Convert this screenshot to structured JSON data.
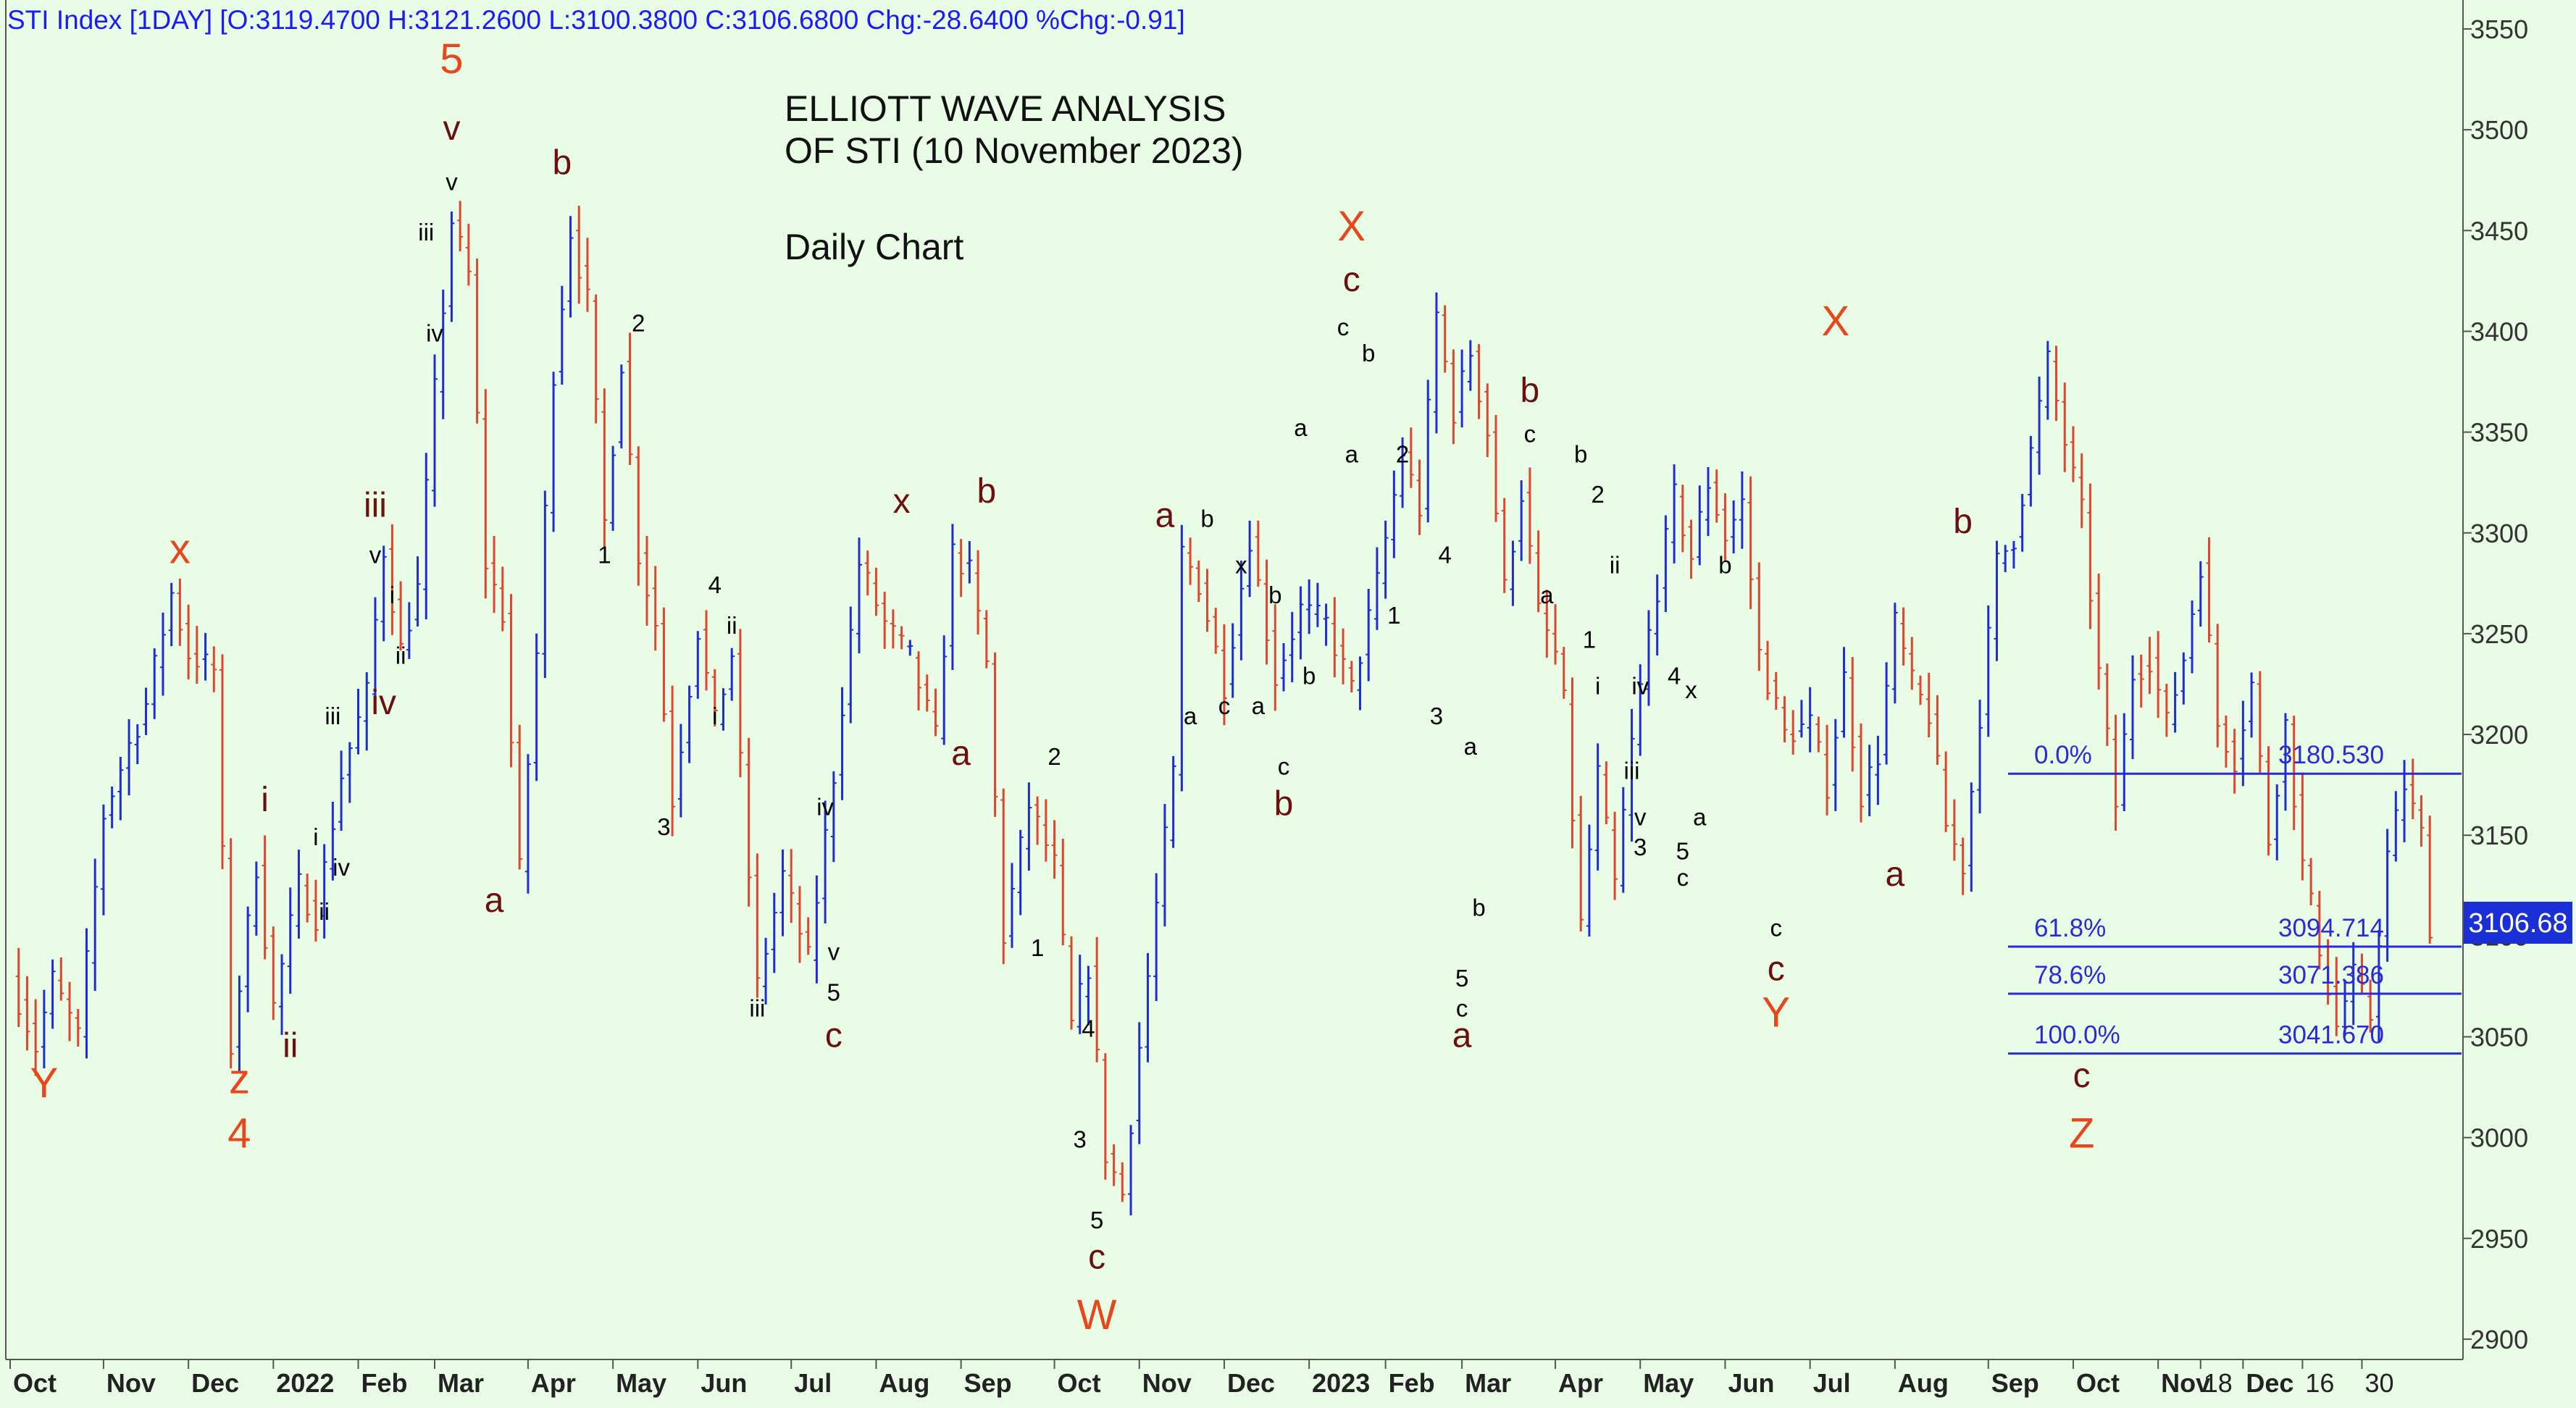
{
  "header": {
    "text": "STI Index [1DAY] [O:3119.4700 H:3121.2600 L:3100.3800 C:3106.6800 Chg:-28.6400 %Chg:-0.91]"
  },
  "title": {
    "line1": "ELLIOTT WAVE ANALYSIS",
    "line2": "OF STI (10 November 2023)",
    "subtitle": "Daily Chart"
  },
  "colors": {
    "background": "#e9fce6",
    "up_bar": "#1f2bd6",
    "down_bar": "#e0452e",
    "header_text": "#1a1aff",
    "primary_label": "#e8471e",
    "intermediate_label": "#6b0f0f",
    "minor_label": "#000000",
    "fib_line": "#2a2ad8"
  },
  "chart_data": {
    "type": "ohlc",
    "title": "ELLIOTT WAVE ANALYSIS OF STI (10 November 2023)",
    "subtitle": "Daily Chart",
    "ylim": [
      2880,
      3565
    ],
    "y_ticks": [
      2900,
      2950,
      3000,
      3050,
      3100,
      3150,
      3200,
      3250,
      3300,
      3350,
      3400,
      3450,
      3500,
      3550
    ],
    "x_ticks": [
      "Oct",
      "Nov",
      "Dec",
      "2022",
      "Feb",
      "Mar",
      "Apr",
      "May",
      "Jun",
      "Jul",
      "Aug",
      "Sep",
      "Oct",
      "Nov",
      "Dec",
      "2023",
      "Feb",
      "Mar",
      "Apr",
      "May",
      "Jun",
      "Jul",
      "Aug",
      "Sep",
      "Oct",
      "Nov",
      "18",
      "Dec",
      "16",
      "30"
    ],
    "x_tick_index": [
      0,
      11,
      21,
      31,
      41,
      50,
      61,
      71,
      81,
      92,
      102,
      112,
      123,
      133,
      143,
      153,
      162,
      171,
      182,
      192,
      202,
      212,
      222,
      233,
      243,
      253,
      258,
      263,
      270,
      277
    ],
    "last_price": "3106.68",
    "price_path": [
      [
        0,
        3080
      ],
      [
        3,
        3045
      ],
      [
        5,
        3078
      ],
      [
        8,
        3050
      ],
      [
        11,
        3160
      ],
      [
        14,
        3195
      ],
      [
        16,
        3215
      ],
      [
        19,
        3270
      ],
      [
        21,
        3240
      ],
      [
        24,
        3232
      ],
      [
        26,
        3045
      ],
      [
        29,
        3135
      ],
      [
        31,
        3065
      ],
      [
        34,
        3125
      ],
      [
        36,
        3110
      ],
      [
        39,
        3180
      ],
      [
        42,
        3220
      ],
      [
        44,
        3292
      ],
      [
        46,
        3242
      ],
      [
        48,
        3272
      ],
      [
        50,
        3370
      ],
      [
        52,
        3455
      ],
      [
        54,
        3428
      ],
      [
        56,
        3285
      ],
      [
        58,
        3260
      ],
      [
        60,
        3132
      ],
      [
        62,
        3240
      ],
      [
        64,
        3380
      ],
      [
        66,
        3450
      ],
      [
        68,
        3415
      ],
      [
        70,
        3305
      ],
      [
        72,
        3385
      ],
      [
        74,
        3290
      ],
      [
        76,
        3255
      ],
      [
        78,
        3168
      ],
      [
        81,
        3252
      ],
      [
        83,
        3205
      ],
      [
        85,
        3240
      ],
      [
        88,
        3075
      ],
      [
        91,
        3130
      ],
      [
        94,
        3088
      ],
      [
        97,
        3180
      ],
      [
        100,
        3285
      ],
      [
        103,
        3255
      ],
      [
        106,
        3238
      ],
      [
        109,
        3198
      ],
      [
        111,
        3290
      ],
      [
        113,
        3280
      ],
      [
        115,
        3235
      ],
      [
        117,
        3100
      ],
      [
        120,
        3165
      ],
      [
        123,
        3135
      ],
      [
        125,
        3055
      ],
      [
        127,
        3085
      ],
      [
        129,
        2992
      ],
      [
        131,
        2972
      ],
      [
        133,
        3045
      ],
      [
        135,
        3115
      ],
      [
        137,
        3180
      ],
      [
        138,
        3290
      ],
      [
        140,
        3275
      ],
      [
        143,
        3225
      ],
      [
        146,
        3298
      ],
      [
        149,
        3228
      ],
      [
        152,
        3262
      ],
      [
        155,
        3255
      ],
      [
        158,
        3222
      ],
      [
        161,
        3275
      ],
      [
        164,
        3340
      ],
      [
        166,
        3312
      ],
      [
        168,
        3408
      ],
      [
        170,
        3360
      ],
      [
        172,
        3390
      ],
      [
        174,
        3350
      ],
      [
        176,
        3272
      ],
      [
        178,
        3320
      ],
      [
        180,
        3260
      ],
      [
        182,
        3240
      ],
      [
        183,
        3215
      ],
      [
        185,
        3105
      ],
      [
        187,
        3180
      ],
      [
        189,
        3125
      ],
      [
        191,
        3195
      ],
      [
        193,
        3250
      ],
      [
        196,
        3318
      ],
      [
        198,
        3288
      ],
      [
        200,
        3325
      ],
      [
        202,
        3298
      ],
      [
        204,
        3315
      ],
      [
        206,
        3240
      ],
      [
        209,
        3200
      ],
      [
        212,
        3205
      ],
      [
        214,
        3175
      ],
      [
        216,
        3228
      ],
      [
        218,
        3170
      ],
      [
        220,
        3190
      ],
      [
        222,
        3255
      ],
      [
        224,
        3225
      ],
      [
        226,
        3210
      ],
      [
        228,
        3155
      ],
      [
        230,
        3135
      ],
      [
        232,
        3210
      ],
      [
        234,
        3285
      ],
      [
        236,
        3298
      ],
      [
        238,
        3340
      ],
      [
        240,
        3385
      ],
      [
        242,
        3345
      ],
      [
        244,
        3310
      ],
      [
        246,
        3230
      ],
      [
        248,
        3165
      ],
      [
        250,
        3230
      ],
      [
        252,
        3238
      ],
      [
        254,
        3205
      ],
      [
        256,
        3238
      ],
      [
        258,
        3285
      ],
      [
        260,
        3205
      ],
      [
        262,
        3188
      ],
      [
        264,
        3225
      ],
      [
        266,
        3148
      ],
      [
        268,
        3205
      ],
      [
        270,
        3135
      ],
      [
        272,
        3095
      ],
      [
        274,
        3055
      ],
      [
        276,
        3080
      ],
      [
        278,
        3060
      ],
      [
        280,
        3140
      ],
      [
        282,
        3175
      ],
      [
        284,
        3150
      ],
      [
        285,
        3106
      ]
    ],
    "fibonacci_levels": [
      {
        "pct": "0.0%",
        "value": "3180.530"
      },
      {
        "pct": "61.8%",
        "value": "3094.714"
      },
      {
        "pct": "78.6%",
        "value": "3071.386"
      },
      {
        "pct": "100.0%",
        "value": "3041.670"
      }
    ],
    "wave_labels": [
      {
        "text": "Y",
        "i": 4,
        "p": 3020,
        "level": "primary"
      },
      {
        "text": "x",
        "i": 20,
        "p": 3285,
        "level": "primary"
      },
      {
        "text": "z",
        "i": 27,
        "p": 3022,
        "level": "primary"
      },
      {
        "text": "4",
        "i": 27,
        "p": 2995,
        "level": "primary"
      },
      {
        "text": "i",
        "i": 30,
        "p": 3162,
        "level": "intermediate"
      },
      {
        "text": "ii",
        "i": 33,
        "p": 3040,
        "level": "intermediate"
      },
      {
        "text": "i",
        "i": 36,
        "p": 3145,
        "level": "minor"
      },
      {
        "text": "ii",
        "i": 37,
        "p": 3108,
        "level": "minor"
      },
      {
        "text": "iii",
        "i": 38,
        "p": 3205,
        "level": "minor"
      },
      {
        "text": "iv",
        "i": 39,
        "p": 3130,
        "level": "minor"
      },
      {
        "text": "iii",
        "i": 43,
        "p": 3308,
        "level": "intermediate"
      },
      {
        "text": "v",
        "i": 43,
        "p": 3285,
        "level": "minor"
      },
      {
        "text": "i",
        "i": 45,
        "p": 3265,
        "level": "minor"
      },
      {
        "text": "iv",
        "i": 44,
        "p": 3210,
        "level": "intermediate"
      },
      {
        "text": "ii",
        "i": 46,
        "p": 3235,
        "level": "minor"
      },
      {
        "text": "iii",
        "i": 49,
        "p": 3445,
        "level": "minor"
      },
      {
        "text": "iv",
        "i": 50,
        "p": 3395,
        "level": "minor"
      },
      {
        "text": "5",
        "i": 52,
        "p": 3528,
        "level": "primary"
      },
      {
        "text": "v",
        "i": 52,
        "p": 3495,
        "level": "intermediate"
      },
      {
        "text": "v",
        "i": 52,
        "p": 3470,
        "level": "minor"
      },
      {
        "text": "a",
        "i": 57,
        "p": 3112,
        "level": "intermediate"
      },
      {
        "text": "b",
        "i": 65,
        "p": 3478,
        "level": "intermediate"
      },
      {
        "text": "2",
        "i": 74,
        "p": 3400,
        "level": "minor"
      },
      {
        "text": "1",
        "i": 70,
        "p": 3285,
        "level": "minor"
      },
      {
        "text": "4",
        "i": 83,
        "p": 3270,
        "level": "minor"
      },
      {
        "text": "ii",
        "i": 85,
        "p": 3250,
        "level": "minor"
      },
      {
        "text": "i",
        "i": 83,
        "p": 3205,
        "level": "minor"
      },
      {
        "text": "3",
        "i": 77,
        "p": 3150,
        "level": "minor"
      },
      {
        "text": "iii",
        "i": 88,
        "p": 3060,
        "level": "minor"
      },
      {
        "text": "iv",
        "i": 96,
        "p": 3160,
        "level": "minor"
      },
      {
        "text": "v",
        "i": 97,
        "p": 3088,
        "level": "minor"
      },
      {
        "text": "5",
        "i": 97,
        "p": 3068,
        "level": "minor"
      },
      {
        "text": "c",
        "i": 97,
        "p": 3045,
        "level": "intermediate"
      },
      {
        "text": "x",
        "i": 105,
        "p": 3310,
        "level": "intermediate"
      },
      {
        "text": "b",
        "i": 115,
        "p": 3315,
        "level": "intermediate"
      },
      {
        "text": "a",
        "i": 112,
        "p": 3185,
        "level": "intermediate"
      },
      {
        "text": "2",
        "i": 123,
        "p": 3185,
        "level": "minor"
      },
      {
        "text": "1",
        "i": 121,
        "p": 3090,
        "level": "minor"
      },
      {
        "text": "4",
        "i": 127,
        "p": 3050,
        "level": "minor"
      },
      {
        "text": "3",
        "i": 126,
        "p": 2995,
        "level": "minor"
      },
      {
        "text": "5",
        "i": 128,
        "p": 2955,
        "level": "minor"
      },
      {
        "text": "c",
        "i": 128,
        "p": 2935,
        "level": "intermediate"
      },
      {
        "text": "W",
        "i": 128,
        "p": 2905,
        "level": "primary"
      },
      {
        "text": "a",
        "i": 136,
        "p": 3303,
        "level": "intermediate"
      },
      {
        "text": "b",
        "i": 141,
        "p": 3303,
        "level": "minor"
      },
      {
        "text": "a",
        "i": 139,
        "p": 3205,
        "level": "minor"
      },
      {
        "text": "c",
        "i": 143,
        "p": 3210,
        "level": "minor"
      },
      {
        "text": "x",
        "i": 145,
        "p": 3280,
        "level": "minor"
      },
      {
        "text": "a",
        "i": 147,
        "p": 3210,
        "level": "minor"
      },
      {
        "text": "b",
        "i": 149,
        "p": 3265,
        "level": "minor"
      },
      {
        "text": "c",
        "i": 150,
        "p": 3180,
        "level": "minor"
      },
      {
        "text": "b",
        "i": 150,
        "p": 3160,
        "level": "intermediate"
      },
      {
        "text": "a",
        "i": 152,
        "p": 3348,
        "level": "minor"
      },
      {
        "text": "b",
        "i": 153,
        "p": 3225,
        "level": "minor"
      },
      {
        "text": "X",
        "i": 158,
        "p": 3445,
        "level": "primary"
      },
      {
        "text": "c",
        "i": 158,
        "p": 3420,
        "level": "intermediate"
      },
      {
        "text": "c",
        "i": 157,
        "p": 3398,
        "level": "minor"
      },
      {
        "text": "b",
        "i": 160,
        "p": 3385,
        "level": "minor"
      },
      {
        "text": "a",
        "i": 158,
        "p": 3335,
        "level": "minor"
      },
      {
        "text": "2",
        "i": 164,
        "p": 3335,
        "level": "minor"
      },
      {
        "text": "1",
        "i": 163,
        "p": 3255,
        "level": "minor"
      },
      {
        "text": "4",
        "i": 169,
        "p": 3285,
        "level": "minor"
      },
      {
        "text": "3",
        "i": 168,
        "p": 3205,
        "level": "minor"
      },
      {
        "text": "a",
        "i": 172,
        "p": 3190,
        "level": "minor"
      },
      {
        "text": "b",
        "i": 173,
        "p": 3110,
        "level": "minor"
      },
      {
        "text": "5",
        "i": 171,
        "p": 3075,
        "level": "minor"
      },
      {
        "text": "c",
        "i": 171,
        "p": 3060,
        "level": "minor"
      },
      {
        "text": "a",
        "i": 171,
        "p": 3045,
        "level": "intermediate"
      },
      {
        "text": "b",
        "i": 179,
        "p": 3365,
        "level": "intermediate"
      },
      {
        "text": "c",
        "i": 179,
        "p": 3345,
        "level": "minor"
      },
      {
        "text": "a",
        "i": 181,
        "p": 3265,
        "level": "minor"
      },
      {
        "text": "b",
        "i": 185,
        "p": 3335,
        "level": "minor"
      },
      {
        "text": "2",
        "i": 187,
        "p": 3315,
        "level": "minor"
      },
      {
        "text": "ii",
        "i": 189,
        "p": 3280,
        "level": "minor"
      },
      {
        "text": "1",
        "i": 186,
        "p": 3243,
        "level": "minor"
      },
      {
        "text": "i",
        "i": 187,
        "p": 3220,
        "level": "minor"
      },
      {
        "text": "iv",
        "i": 192,
        "p": 3220,
        "level": "minor"
      },
      {
        "text": "4",
        "i": 196,
        "p": 3225,
        "level": "minor"
      },
      {
        "text": "x",
        "i": 198,
        "p": 3218,
        "level": "minor"
      },
      {
        "text": "iii",
        "i": 191,
        "p": 3178,
        "level": "minor"
      },
      {
        "text": "v",
        "i": 192,
        "p": 3155,
        "level": "minor"
      },
      {
        "text": "3",
        "i": 192,
        "p": 3140,
        "level": "minor"
      },
      {
        "text": "5",
        "i": 197,
        "p": 3138,
        "level": "minor"
      },
      {
        "text": "c",
        "i": 197,
        "p": 3125,
        "level": "minor"
      },
      {
        "text": "a",
        "i": 199,
        "p": 3155,
        "level": "minor"
      },
      {
        "text": "b",
        "i": 202,
        "p": 3280,
        "level": "minor"
      },
      {
        "text": "c",
        "i": 208,
        "p": 3100,
        "level": "minor"
      },
      {
        "text": "c",
        "i": 208,
        "p": 3078,
        "level": "intermediate"
      },
      {
        "text": "Y",
        "i": 208,
        "p": 3055,
        "level": "primary"
      },
      {
        "text": "X",
        "i": 215,
        "p": 3398,
        "level": "primary"
      },
      {
        "text": "a",
        "i": 222,
        "p": 3125,
        "level": "intermediate"
      },
      {
        "text": "b",
        "i": 230,
        "p": 3300,
        "level": "intermediate"
      },
      {
        "text": "c",
        "i": 244,
        "p": 3025,
        "level": "intermediate"
      },
      {
        "text": "Z",
        "i": 244,
        "p": 2995,
        "level": "primary"
      }
    ]
  }
}
